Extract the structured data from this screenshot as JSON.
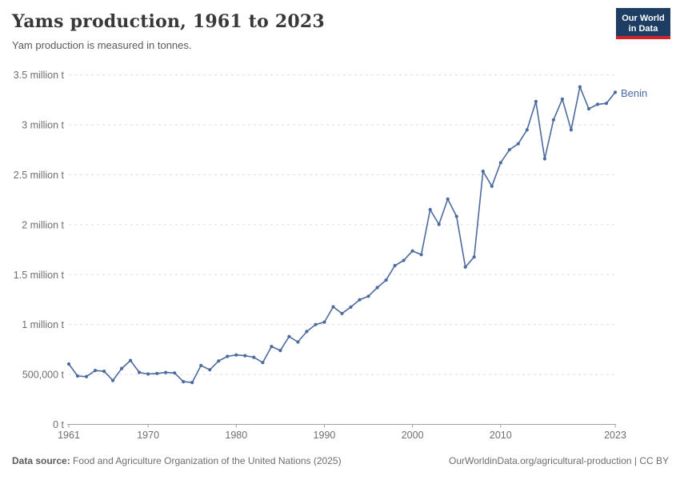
{
  "header": {
    "title": "Yams production, 1961 to 2023",
    "subtitle": "Yam production is measured in tonnes."
  },
  "logo": {
    "line1": "Our World",
    "line2": "in Data",
    "bg_color": "#1d3d63",
    "stripe_color": "#d2232a"
  },
  "chart_data": {
    "type": "line",
    "title": "Yams production, 1961 to 2023",
    "ylabel": "",
    "xlabel": "",
    "unit": "tonnes",
    "grid": "horizontal-dashed",
    "xlim": [
      1961,
      2023
    ],
    "ylim": [
      0,
      3500000
    ],
    "xticks": [
      1961,
      1970,
      1980,
      1990,
      2000,
      2010,
      2023
    ],
    "yticks": [
      {
        "value": 0,
        "label": "0 t"
      },
      {
        "value": 500000,
        "label": "500,000 t"
      },
      {
        "value": 1000000,
        "label": "1 million t"
      },
      {
        "value": 1500000,
        "label": "1.5 million t"
      },
      {
        "value": 2000000,
        "label": "2 million t"
      },
      {
        "value": 2500000,
        "label": "2.5 million t"
      },
      {
        "value": 3000000,
        "label": "3 million t"
      },
      {
        "value": 3500000,
        "label": "3.5 million t"
      }
    ],
    "x": [
      1961,
      1962,
      1963,
      1964,
      1965,
      1966,
      1967,
      1968,
      1969,
      1970,
      1971,
      1972,
      1973,
      1974,
      1975,
      1976,
      1977,
      1978,
      1979,
      1980,
      1981,
      1982,
      1983,
      1984,
      1985,
      1986,
      1987,
      1988,
      1989,
      1990,
      1991,
      1992,
      1993,
      1994,
      1995,
      1996,
      1997,
      1998,
      1999,
      2000,
      2001,
      2002,
      2003,
      2004,
      2005,
      2006,
      2007,
      2008,
      2009,
      2010,
      2011,
      2012,
      2013,
      2014,
      2015,
      2016,
      2017,
      2018,
      2019,
      2020,
      2021,
      2022,
      2023
    ],
    "series": [
      {
        "name": "Benin",
        "color": "#4C6A9E",
        "values": [
          605000,
          485000,
          478000,
          540000,
          532000,
          440000,
          560000,
          640000,
          521000,
          505000,
          510000,
          520000,
          515000,
          428000,
          420000,
          590000,
          547000,
          635000,
          681000,
          695000,
          688000,
          672000,
          619000,
          780000,
          740000,
          880000,
          825000,
          930000,
          1000000,
          1025000,
          1178000,
          1110000,
          1175000,
          1248000,
          1283000,
          1370000,
          1445000,
          1590000,
          1642000,
          1737000,
          1700000,
          2151000,
          2003000,
          2257000,
          2083000,
          1576000,
          1677000,
          2535000,
          2385000,
          2620000,
          2750000,
          2810000,
          2950000,
          3233000,
          2660000,
          3050000,
          3258000,
          2950000,
          3380000,
          3160000,
          3205000,
          3215000,
          3325000
        ]
      }
    ],
    "legend": "entity label at line end"
  },
  "footer": {
    "datasource_label": "Data source:",
    "datasource_text": " Food and Agriculture Organization of the United Nations (2025)",
    "note_right": "OurWorldinData.org/agricultural-production | CC BY"
  }
}
